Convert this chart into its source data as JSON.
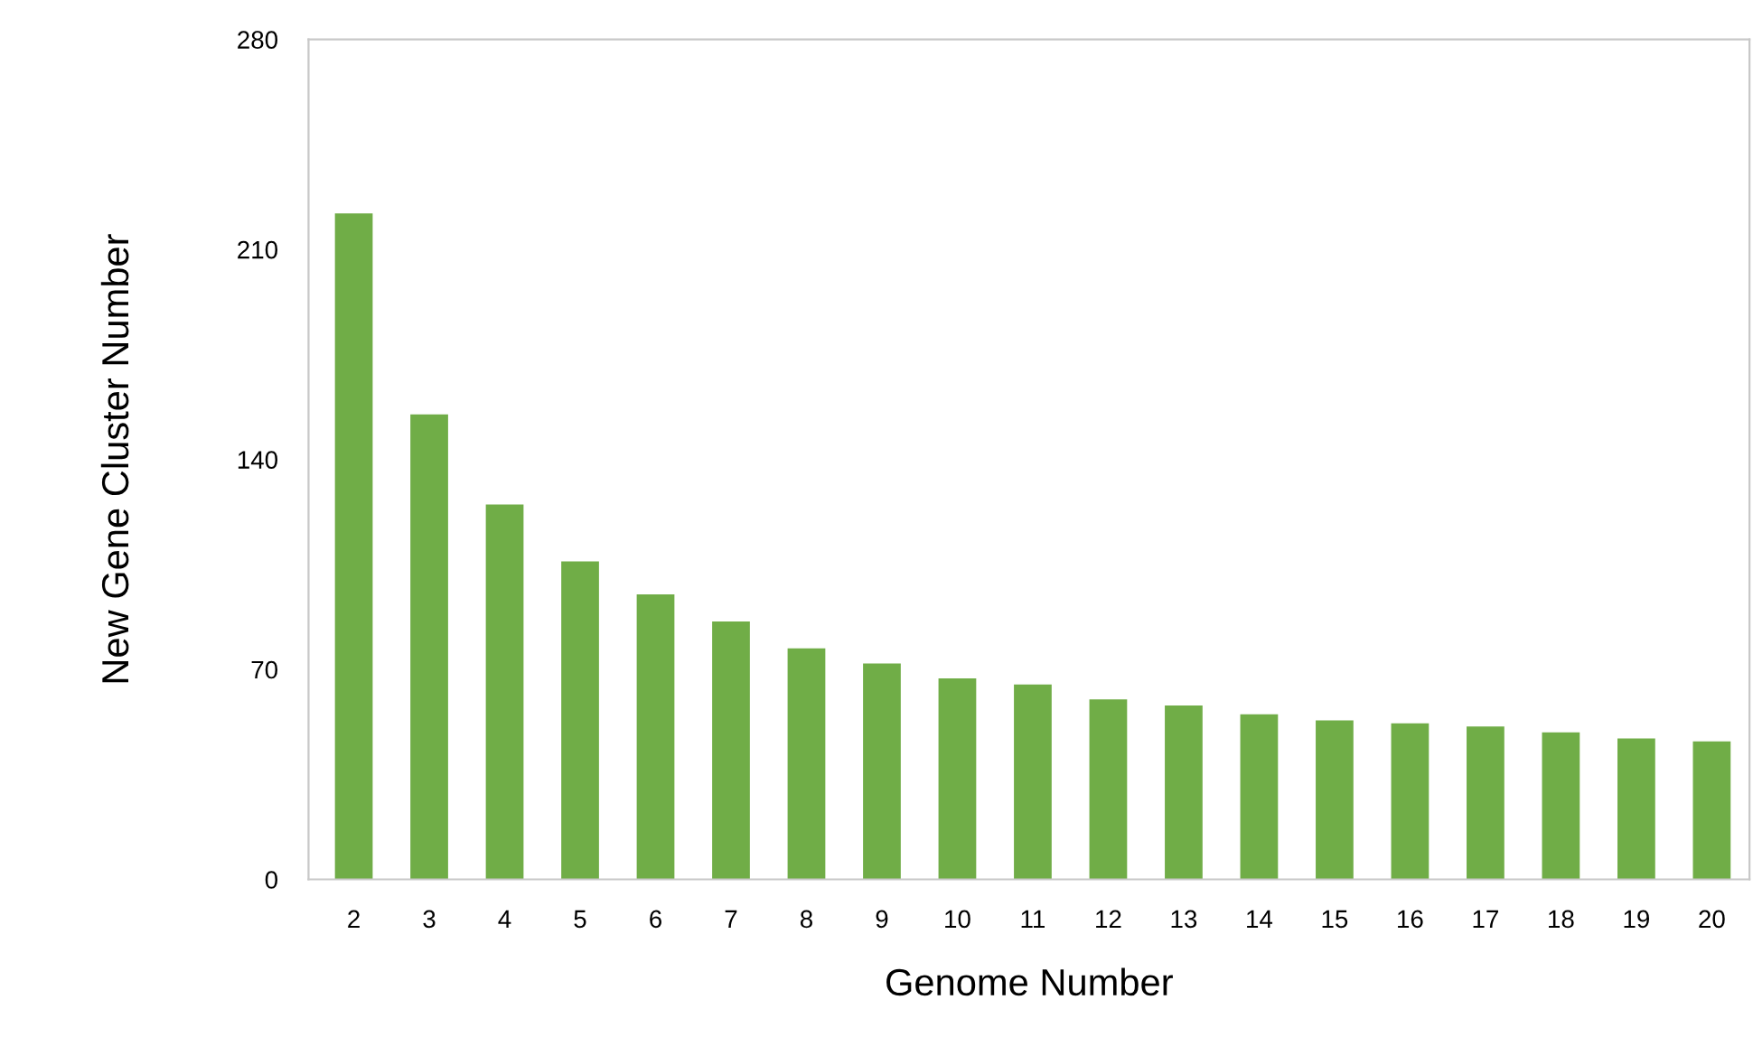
{
  "chart_data": {
    "type": "bar",
    "xlabel": "Genome Number",
    "ylabel": "New Gene Cluster Number",
    "categories": [
      "2",
      "3",
      "4",
      "5",
      "6",
      "7",
      "8",
      "9",
      "10",
      "11",
      "12",
      "13",
      "14",
      "15",
      "16",
      "17",
      "18",
      "19",
      "20"
    ],
    "values": [
      222,
      155,
      125,
      106,
      95,
      86,
      77,
      72,
      67,
      65,
      60,
      58,
      55,
      53,
      52,
      51,
      49,
      47,
      46
    ],
    "color": "#70ad47",
    "ylim": [
      0,
      280
    ],
    "yticks": [
      0,
      70,
      140,
      210,
      280
    ],
    "grid": false,
    "legend": false
  }
}
